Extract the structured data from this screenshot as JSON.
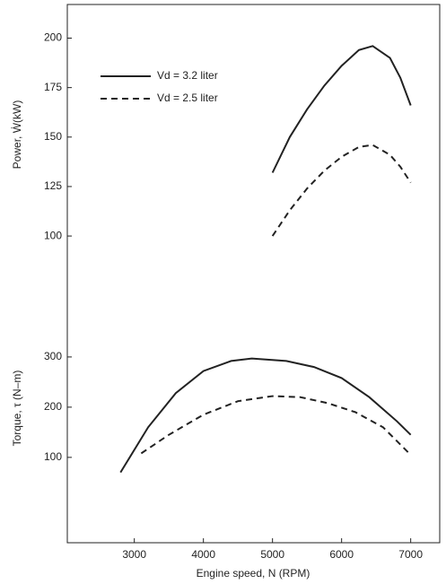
{
  "chart_data": [
    {
      "type": "line",
      "y_label": "Power, Ẇ(kW)",
      "xlim": [
        2030,
        7420
      ],
      "ylim": [
        -55,
        217
      ],
      "yticks": [
        100,
        125,
        150,
        175,
        200
      ],
      "legend": "upper left",
      "series": [
        {
          "name": "Vd = 3.2 liter",
          "color": "#222222",
          "dashed": false,
          "x": [
            5000,
            5250,
            5500,
            5750,
            6000,
            6250,
            6450,
            6700,
            6850,
            7000
          ],
          "values": [
            132,
            150,
            164,
            176,
            186,
            194,
            196,
            190,
            180,
            166
          ]
        },
        {
          "name": "Vd = 2.5 liter",
          "color": "#222222",
          "dashed": true,
          "x": [
            5000,
            5250,
            5500,
            5750,
            6000,
            6250,
            6450,
            6700,
            6850,
            7000
          ],
          "values": [
            100,
            113,
            124,
            133,
            140,
            145,
            146,
            141,
            135,
            127
          ]
        }
      ]
    },
    {
      "type": "line",
      "y_label": "Torque, τ (N–m)",
      "x_label": "Engine speed, N (RPM)",
      "xlim": [
        2030,
        7420
      ],
      "ylim": [
        -70,
        1002
      ],
      "yticks": [
        100,
        200,
        300
      ],
      "xticks": [
        3000,
        4000,
        5000,
        6000,
        7000
      ],
      "series": [
        {
          "color": "#222222",
          "dashed": false,
          "x": [
            2800,
            3200,
            3600,
            4000,
            4400,
            4700,
            5200,
            5600,
            6000,
            6400,
            6800,
            7000
          ],
          "values": [
            70,
            160,
            228,
            272,
            292,
            297,
            292,
            280,
            258,
            220,
            172,
            145
          ]
        },
        {
          "color": "#222222",
          "dashed": true,
          "x": [
            3100,
            3500,
            4000,
            4500,
            5000,
            5400,
            5800,
            6200,
            6600,
            7000
          ],
          "values": [
            108,
            145,
            185,
            212,
            222,
            220,
            208,
            190,
            160,
            105
          ]
        }
      ]
    }
  ]
}
